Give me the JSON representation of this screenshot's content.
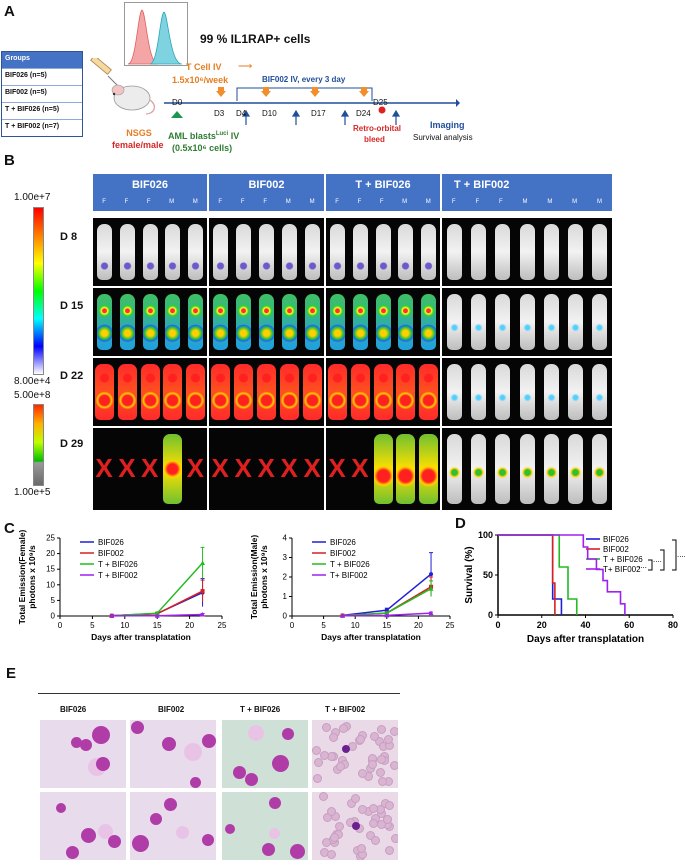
{
  "panelA": {
    "label": "A",
    "flow_text": "99 % IL1RAP+ cells",
    "groups_header": "Groups",
    "groups": [
      "BIF026 (n=5)",
      "BIF002 (n=5)",
      "T + BIF026 (n=5)",
      "T + BIF002 (n=7)"
    ],
    "tcell_line1": "T Cell IV",
    "tcell_line2": "1.5x10⁶/week",
    "bif_schedule": "BIF002 IV, every 3 day",
    "days": [
      "D0",
      "D3",
      "D4",
      "D10",
      "D17",
      "D24",
      "D25"
    ],
    "imaging": "Imaging",
    "nsgs_line1": "NSGS",
    "nsgs_line2": "female/male",
    "aml_line1": "AML blasts",
    "aml_sup": "Luci",
    "aml_iv": " IV",
    "aml_line2": "(0.5x10⁶ cells)",
    "retro_line1": "Retro-orbital",
    "retro_line2": "bleed",
    "survival": "Survival analysis"
  },
  "panelB": {
    "label": "B",
    "colorbar1_max": "1.00e+7",
    "colorbar1_min": "8.00e+4",
    "colorbar2_max": "5.00e+8",
    "colorbar2_min": "1.00e+5",
    "groups": [
      {
        "name": "BIF026",
        "sexes": [
          "F",
          "F",
          "F",
          "M",
          "M"
        ]
      },
      {
        "name": "BIF002",
        "sexes": [
          "F",
          "F",
          "F",
          "M",
          "M"
        ]
      },
      {
        "name": "T + BIF026",
        "sexes": [
          "F",
          "F",
          "F",
          "M",
          "M"
        ]
      },
      {
        "name": "T + BIF002",
        "sexes": [
          "F",
          "F",
          "F",
          "M",
          "M",
          "M",
          "M"
        ]
      }
    ],
    "days": [
      "D 8",
      "D 15",
      "D 22",
      "D 29"
    ]
  },
  "panelC": {
    "label": "C",
    "colors": {
      "BIF026": "#1f1fd6",
      "BIF002": "#d62020",
      "T + BIF026": "#22bb22",
      "T + BIF002": "#a020f0"
    }
  },
  "panelD": {
    "label": "D",
    "sig": "....",
    "sig2": "....",
    "sig3": "...."
  },
  "panelE": {
    "label": "E",
    "headers": [
      "BIF026",
      "BIF002",
      "T + BIF026",
      "T + BIF002"
    ]
  },
  "chart_data": [
    {
      "type": "line",
      "ylabel": "Total Emission(Female) photons x 10⁹/s",
      "xlabel": "Days after transplatation",
      "x": [
        8,
        15,
        22
      ],
      "xlim": [
        0,
        25
      ],
      "ylim": [
        0,
        25
      ],
      "xticks": [
        0,
        5,
        10,
        15,
        20,
        25
      ],
      "yticks": [
        0,
        5,
        10,
        15,
        20,
        25
      ],
      "legend": "top-left",
      "series": [
        {
          "name": "BIF026",
          "values": [
            0.1,
            0.8,
            7.5
          ],
          "err": [
            0,
            0.3,
            4.5
          ]
        },
        {
          "name": "BIF002",
          "values": [
            0.1,
            0.7,
            8.0
          ],
          "err": [
            0,
            0.3,
            3.5
          ]
        },
        {
          "name": "T + BIF026",
          "values": [
            0.1,
            0.9,
            17.0
          ],
          "err": [
            0,
            0.3,
            5.0
          ]
        },
        {
          "name": "T + BIF002",
          "values": [
            0.05,
            0.1,
            0.5
          ],
          "err": [
            0,
            0,
            0.3
          ]
        }
      ]
    },
    {
      "type": "line",
      "ylabel": "Total Emission(Male) photons x 10⁹/s",
      "xlabel": "Days after transplatation",
      "x": [
        8,
        15,
        22
      ],
      "xlim": [
        0,
        25
      ],
      "ylim": [
        0,
        4
      ],
      "xticks": [
        0,
        5,
        10,
        15,
        20,
        25
      ],
      "yticks": [
        0,
        1,
        2,
        3,
        4
      ],
      "legend": "top-left",
      "series": [
        {
          "name": "BIF026",
          "values": [
            0.03,
            0.3,
            2.15
          ],
          "err": [
            0,
            0.1,
            1.1
          ]
        },
        {
          "name": "BIF002",
          "values": [
            0.02,
            0.15,
            1.5
          ],
          "err": [
            0,
            0.05,
            0.5
          ]
        },
        {
          "name": "T + BIF026",
          "values": [
            0.02,
            0.15,
            1.4
          ],
          "err": [
            0,
            0.05,
            0.4
          ]
        },
        {
          "name": "T+ BIF002",
          "values": [
            0.01,
            0.03,
            0.15
          ],
          "err": [
            0,
            0,
            0.05
          ]
        }
      ]
    },
    {
      "type": "line",
      "ylabel": "Survival (%)",
      "xlabel": "Days after transplatation",
      "xlim": [
        0,
        80
      ],
      "ylim": [
        0,
        100
      ],
      "xticks": [
        0,
        20,
        40,
        60,
        80
      ],
      "yticks": [
        0,
        50,
        100
      ],
      "legend": "top-right",
      "series": [
        {
          "name": "BIF026",
          "steps": [
            [
              0,
              100
            ],
            [
              25,
              100
            ],
            [
              25,
              20
            ],
            [
              29,
              20
            ],
            [
              29,
              0
            ]
          ]
        },
        {
          "name": "BIF002",
          "steps": [
            [
              0,
              100
            ],
            [
              25,
              100
            ],
            [
              25,
              40
            ],
            [
              26,
              40
            ],
            [
              26,
              0
            ]
          ]
        },
        {
          "name": "T + BIF026",
          "steps": [
            [
              0,
              100
            ],
            [
              28,
              100
            ],
            [
              28,
              60
            ],
            [
              32,
              60
            ],
            [
              32,
              20
            ],
            [
              36,
              20
            ],
            [
              36,
              0
            ]
          ]
        },
        {
          "name": "T+ BIF002",
          "steps": [
            [
              0,
              100
            ],
            [
              39,
              100
            ],
            [
              39,
              85
            ],
            [
              41,
              85
            ],
            [
              41,
              70
            ],
            [
              45,
              70
            ],
            [
              45,
              57
            ],
            [
              48,
              57
            ],
            [
              48,
              43
            ],
            [
              50,
              43
            ],
            [
              50,
              29
            ],
            [
              56,
              29
            ],
            [
              56,
              14
            ],
            [
              58,
              14
            ],
            [
              58,
              0
            ]
          ]
        }
      ]
    }
  ]
}
